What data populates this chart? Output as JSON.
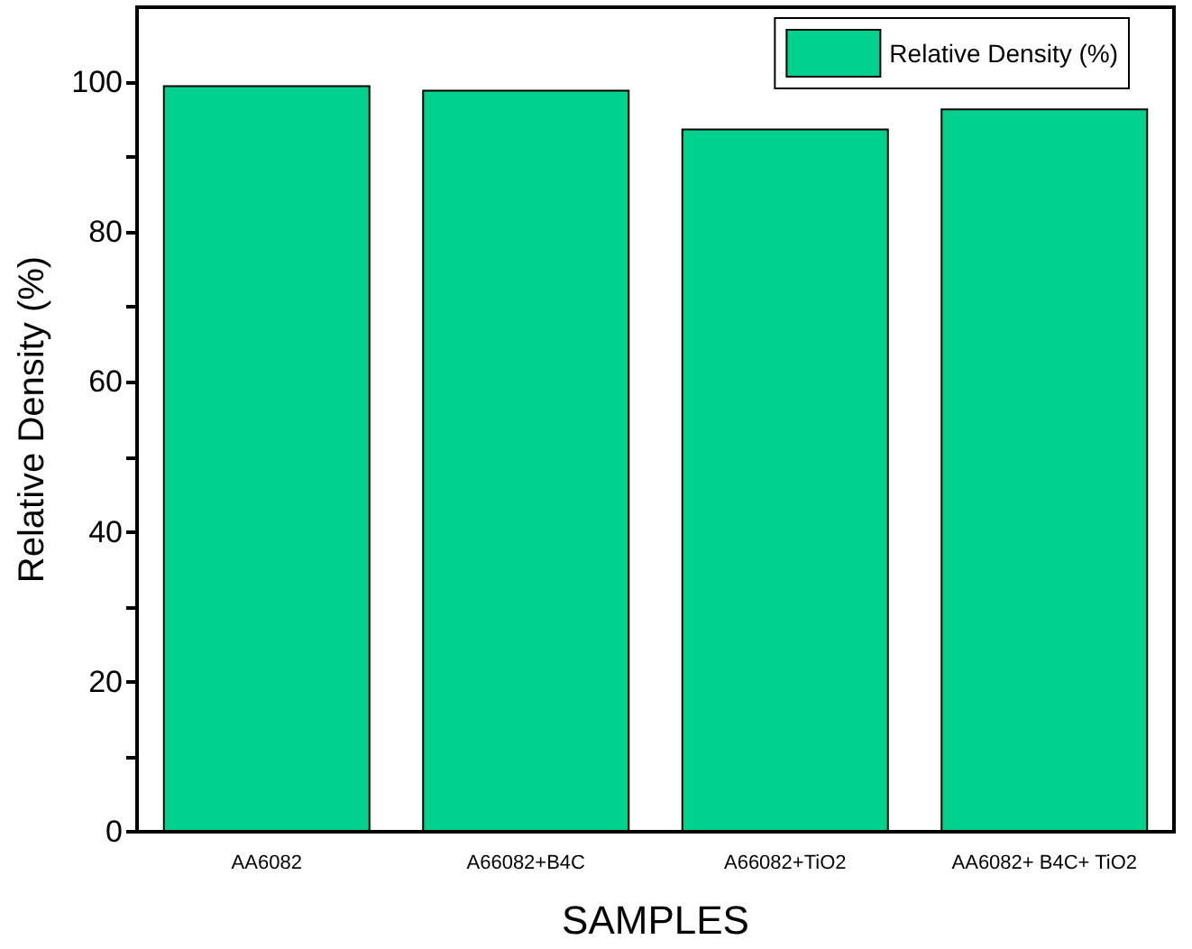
{
  "chart_data": {
    "type": "bar",
    "xlabel": "SAMPLES",
    "ylabel": "Relative Density (%)",
    "categories": [
      "AA6082",
      "A66082+B4C",
      "A66082+TiO2",
      "AA6082+ B4C+ TiO2"
    ],
    "series": [
      {
        "name": "Relative Density (%)",
        "color": "#00d18c",
        "values": [
          99.6,
          99.0,
          93.8,
          96.5
        ]
      }
    ],
    "ylim": [
      0,
      110
    ],
    "yticks": [
      0,
      {
        "value": 10,
        "label": null
      },
      20,
      {
        "value": 30,
        "label": null
      },
      40,
      {
        "value": 50,
        "label": null
      },
      60,
      {
        "value": 70,
        "label": null
      },
      80,
      {
        "value": 90,
        "label": null
      },
      100
    ],
    "grid": false,
    "legend": "top right"
  }
}
